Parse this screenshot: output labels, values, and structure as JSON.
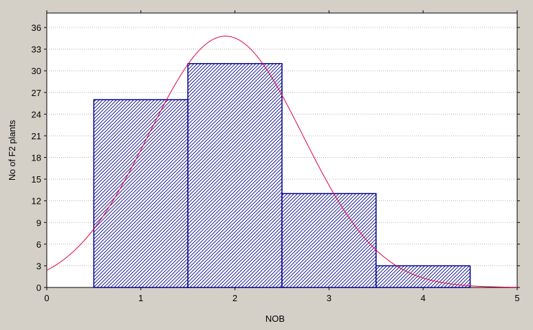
{
  "chart_data": {
    "type": "bar",
    "xlabel": "NOB",
    "ylabel": "No of F2 plants",
    "xlim": [
      0,
      5
    ],
    "ylim": [
      0,
      38
    ],
    "x_ticks": [
      0,
      1,
      2,
      3,
      4,
      5
    ],
    "y_ticks": [
      0,
      3,
      6,
      9,
      12,
      15,
      18,
      21,
      24,
      27,
      30,
      33,
      36
    ],
    "grid": "horizontal dotted",
    "bars": [
      {
        "x": 1,
        "value": 26
      },
      {
        "x": 2,
        "value": 31
      },
      {
        "x": 3,
        "value": 13
      },
      {
        "x": 4,
        "value": 3
      }
    ],
    "bar_width": 1,
    "fit_curve": {
      "type": "normal",
      "mean": 1.9,
      "sd": 0.82,
      "peak": 34.8
    },
    "colors": {
      "background": "#d4d0c8",
      "plot_background": "#ffffff",
      "bar_edge": "#00008b",
      "bar_hatch": "#00008b",
      "curve": "#e0003c",
      "grid": "#b0b0b0"
    }
  }
}
